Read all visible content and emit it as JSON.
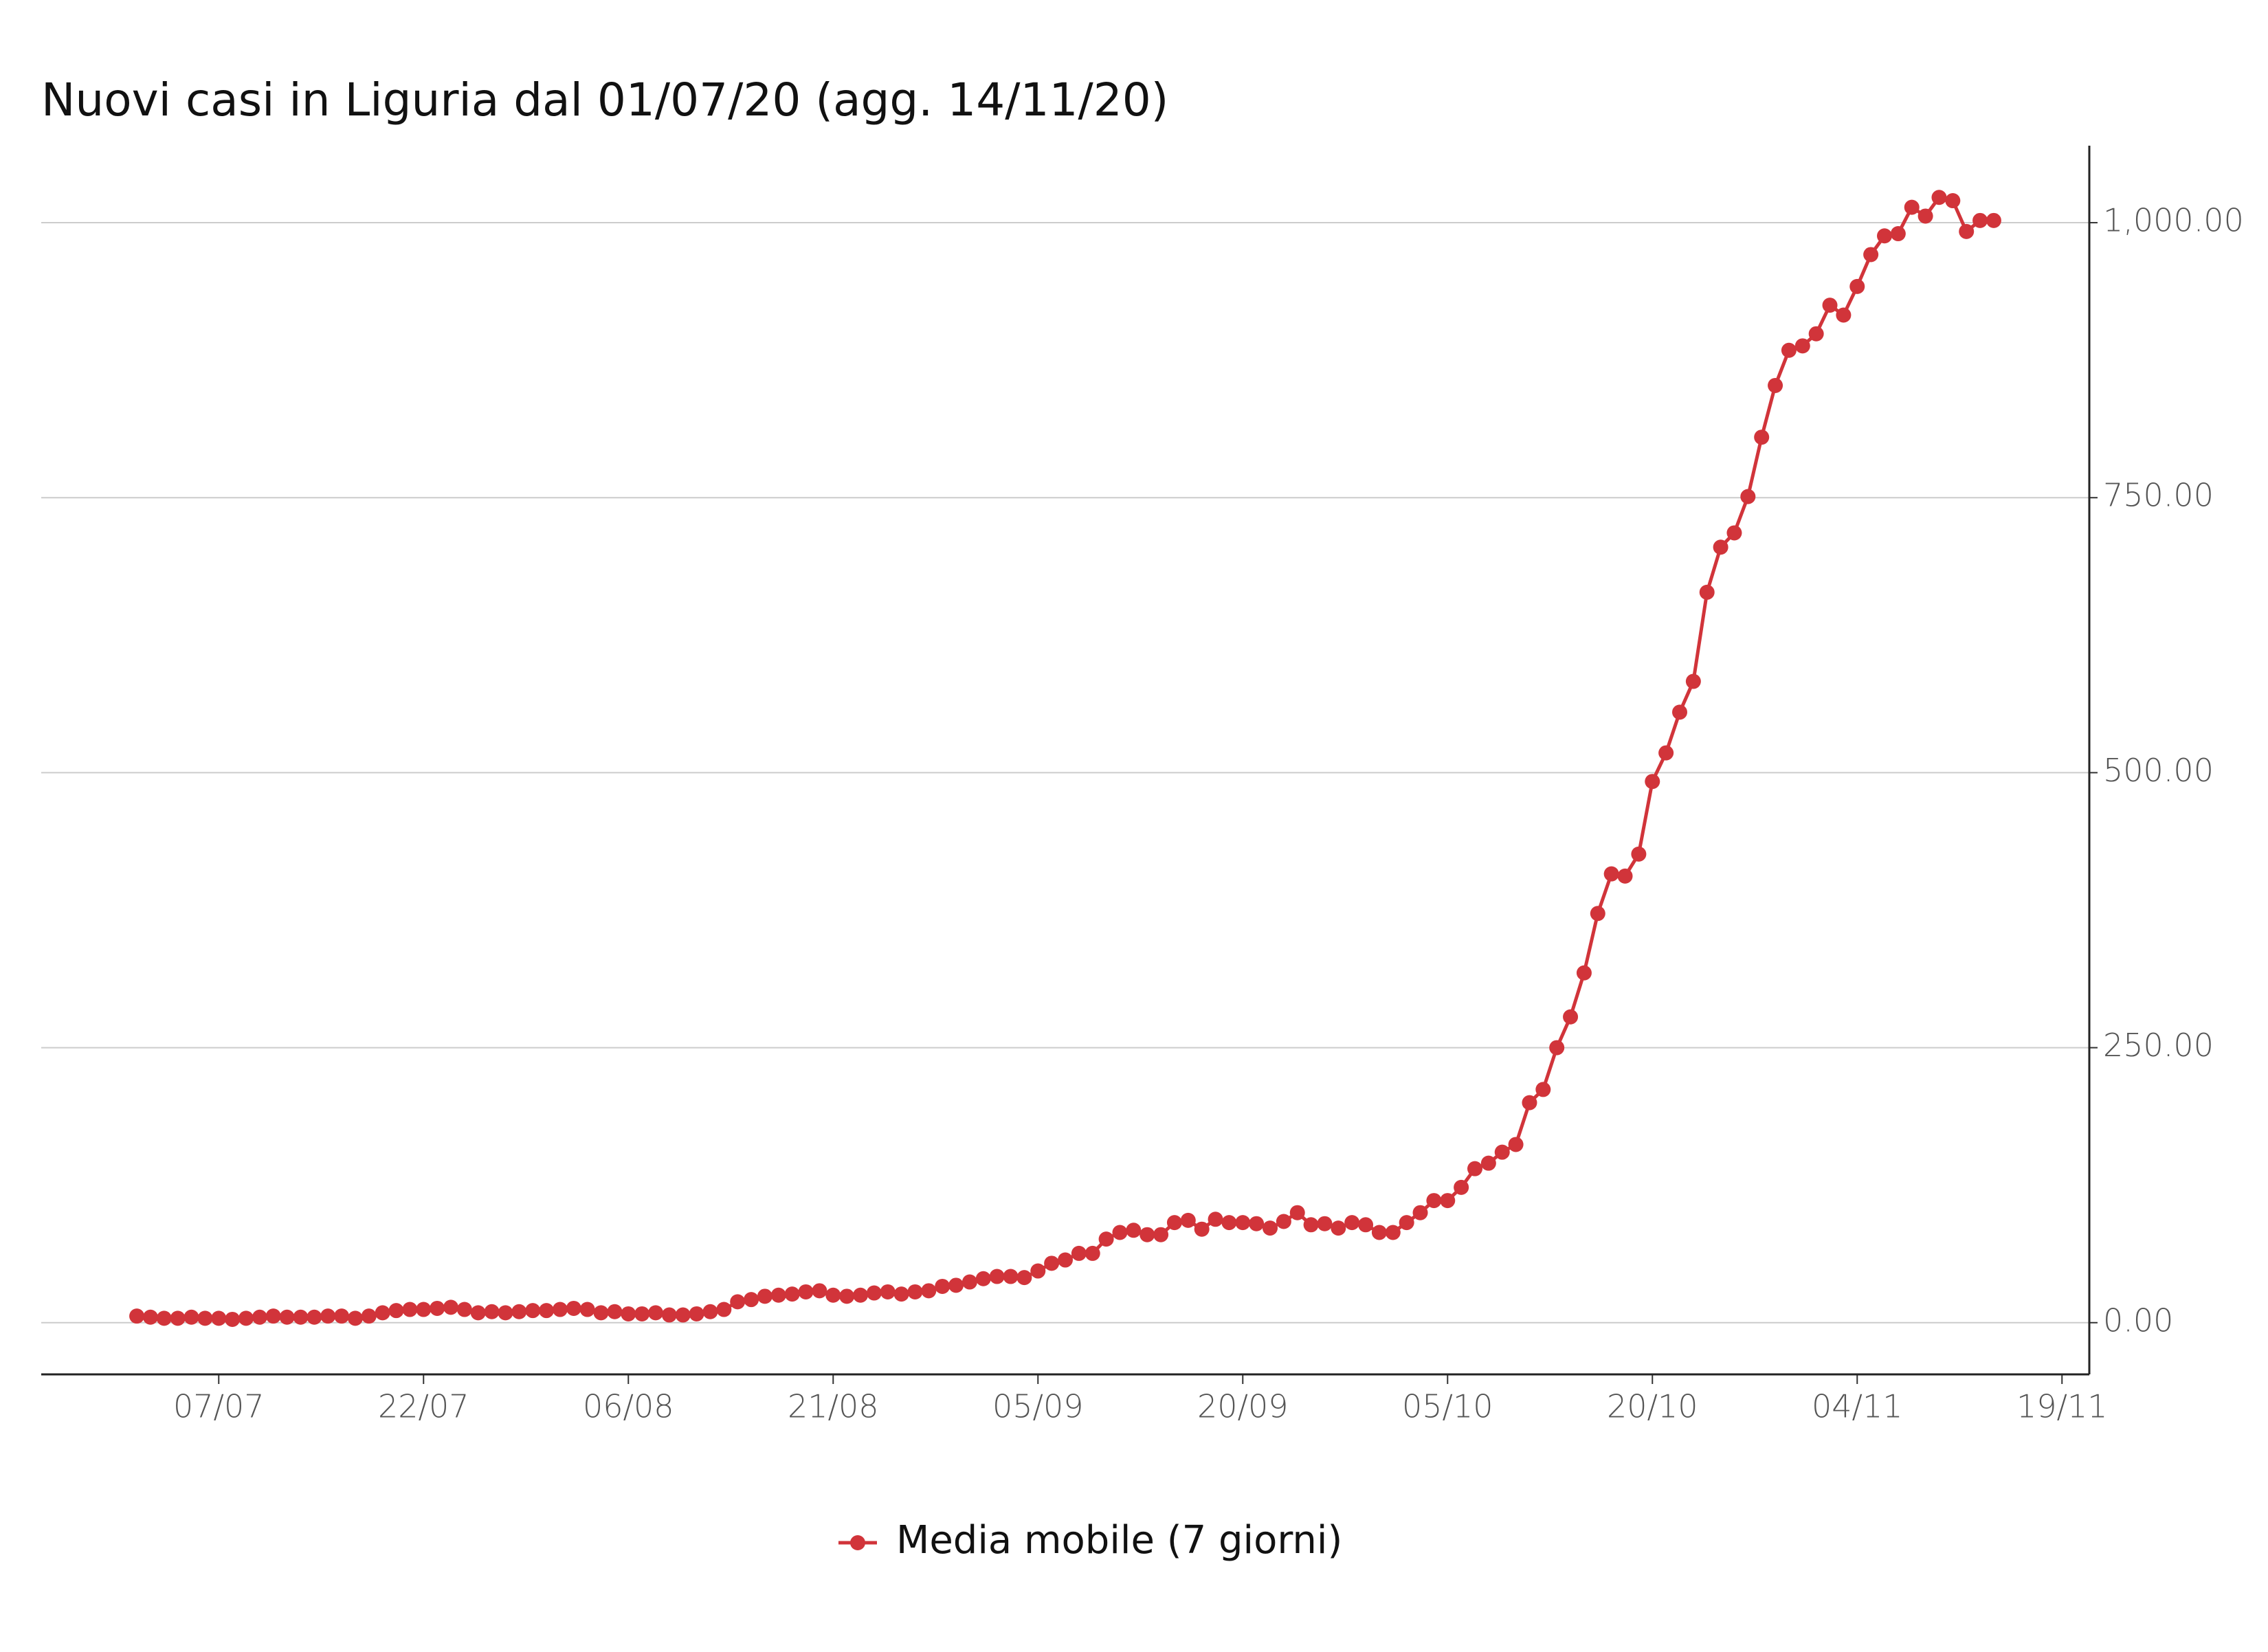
{
  "chart_data": {
    "type": "line",
    "title": "Nuovi casi in Liguria dal 01/07/20 (agg. 14/11/20)",
    "x": [
      "01/07",
      "02/07",
      "03/07",
      "04/07",
      "05/07",
      "06/07",
      "07/07",
      "08/07",
      "09/07",
      "10/07",
      "11/07",
      "12/07",
      "13/07",
      "14/07",
      "15/07",
      "16/07",
      "17/07",
      "18/07",
      "19/07",
      "20/07",
      "21/07",
      "22/07",
      "23/07",
      "24/07",
      "25/07",
      "26/07",
      "27/07",
      "28/07",
      "29/07",
      "30/07",
      "31/07",
      "01/08",
      "02/08",
      "03/08",
      "04/08",
      "05/08",
      "06/08",
      "07/08",
      "08/08",
      "09/08",
      "10/08",
      "11/08",
      "12/08",
      "13/08",
      "14/08",
      "15/08",
      "16/08",
      "17/08",
      "18/08",
      "19/08",
      "20/08",
      "21/08",
      "22/08",
      "23/08",
      "24/08",
      "25/08",
      "26/08",
      "27/08",
      "28/08",
      "29/08",
      "30/08",
      "31/08",
      "01/09",
      "02/09",
      "03/09",
      "04/09",
      "05/09",
      "06/09",
      "07/09",
      "08/09",
      "09/09",
      "10/09",
      "11/09",
      "12/09",
      "13/09",
      "14/09",
      "15/09",
      "16/09",
      "17/09",
      "18/09",
      "19/09",
      "20/09",
      "21/09",
      "22/09",
      "23/09",
      "24/09",
      "25/09",
      "26/09",
      "27/09",
      "28/09",
      "29/09",
      "30/09",
      "01/10",
      "02/10",
      "03/10",
      "04/10",
      "05/10",
      "06/10",
      "07/10",
      "08/10",
      "09/10",
      "10/10",
      "11/10",
      "12/10",
      "13/10",
      "14/10",
      "15/10",
      "16/10",
      "17/10",
      "18/10",
      "19/10",
      "20/10",
      "21/10",
      "22/10",
      "23/10",
      "24/10",
      "25/10",
      "26/10",
      "27/10",
      "28/10",
      "29/10",
      "30/10",
      "31/10",
      "01/11",
      "02/11",
      "03/11",
      "04/11",
      "05/11",
      "06/11",
      "07/11",
      "08/11",
      "09/11",
      "10/11",
      "11/11",
      "12/11",
      "13/11",
      "14/11"
    ],
    "series": [
      {
        "name": "Media mobile (7 giorni)",
        "color": "#d1343a",
        "values": [
          6,
          5,
          4,
          4,
          5,
          4,
          4,
          3,
          4,
          5,
          6,
          5,
          5,
          5,
          6,
          6,
          4,
          6,
          9,
          11,
          12,
          12,
          13,
          14,
          12,
          9,
          10,
          9,
          10,
          11,
          11,
          12,
          13,
          12,
          9,
          10,
          8,
          8,
          9,
          7,
          7,
          8,
          10,
          12,
          19,
          21,
          24,
          25,
          26,
          28,
          29,
          25,
          24,
          25,
          27,
          28,
          26,
          28,
          29,
          33,
          34,
          37,
          40,
          42,
          42,
          41,
          47,
          54,
          57,
          63,
          63,
          76,
          82,
          84,
          80,
          80,
          91,
          93,
          85,
          94,
          91,
          91,
          90,
          86,
          92,
          100,
          89,
          90,
          86,
          91,
          89,
          82,
          82,
          91,
          100,
          111,
          111,
          123,
          140,
          145,
          155,
          162,
          200,
          212,
          250,
          278,
          318,
          372,
          408,
          406,
          426,
          492,
          518,
          555,
          583,
          664,
          705,
          718,
          751,
          805,
          852,
          884,
          888,
          899,
          925,
          916,
          942,
          971,
          988,
          990,
          1014,
          1006,
          1023,
          1020,
          992,
          1002,
          1002
        ]
      }
    ],
    "xlim": [
      "24/06",
      "21/11"
    ],
    "xticks": [
      "07/07",
      "22/07",
      "06/08",
      "21/08",
      "05/09",
      "20/09",
      "05/10",
      "20/10",
      "04/11",
      "19/11"
    ],
    "ylim": [
      -47,
      1070
    ],
    "yticks": [
      {
        "value": 0,
        "label": "0.00"
      },
      {
        "value": 250,
        "label": "250.00"
      },
      {
        "value": 500,
        "label": "500.00"
      },
      {
        "value": 750,
        "label": "750.00"
      },
      {
        "value": 1000,
        "label": "1,000.00"
      }
    ],
    "grid": true,
    "legend": "bottom"
  }
}
